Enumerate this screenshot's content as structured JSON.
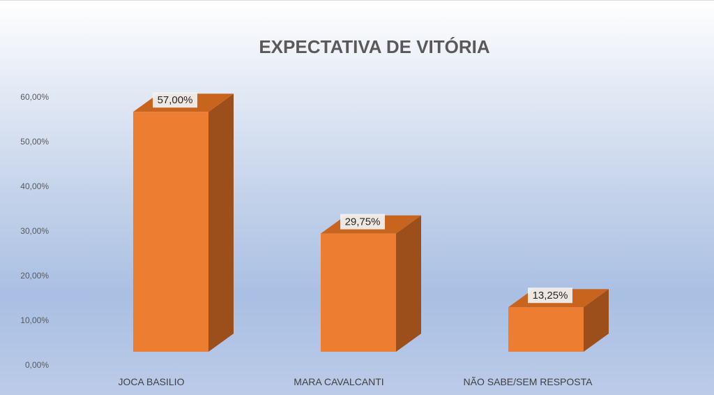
{
  "chart_data": {
    "type": "bar",
    "title": "EXPECTATIVA DE VITÓRIA",
    "categories": [
      "JOCA BASILIO",
      "MARA CAVALCANTI",
      "NÃO SABE/SEM RESPOSTA"
    ],
    "values": [
      57.0,
      29.75,
      13.25
    ],
    "data_labels": [
      "57,00%",
      "29,75%",
      "13,25%"
    ],
    "y_ticks": [
      "0,00%",
      "10,00%",
      "20,00%",
      "30,00%",
      "40,00%",
      "50,00%",
      "60,00%"
    ],
    "ylim": [
      0,
      60
    ],
    "xlabel": "",
    "ylabel": "",
    "grid": false,
    "legend": "none",
    "style": "3d-column"
  },
  "colors": {
    "bar_front": "#ed7d31",
    "bar_side": "#9c4f1b",
    "bar_top": "#c9641f",
    "label_bg": "#f2f2f2"
  }
}
